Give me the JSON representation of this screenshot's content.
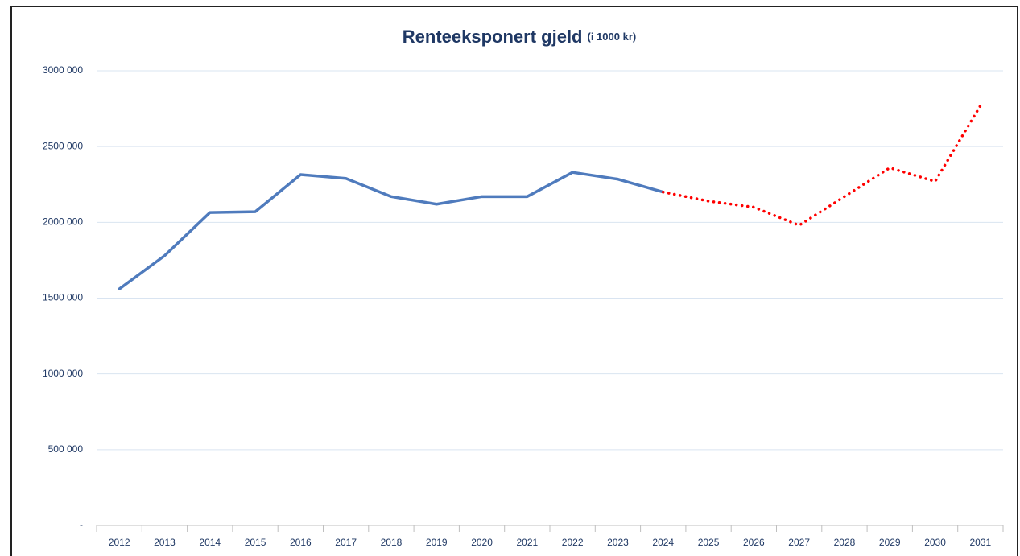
{
  "chart_data": {
    "type": "line",
    "title": "Renteeksponert gjeld",
    "subtitle": "(i 1000 kr)",
    "categories": [
      "2012",
      "2013",
      "2014",
      "2015",
      "2016",
      "2017",
      "2018",
      "2019",
      "2020",
      "2021",
      "2022",
      "2023",
      "2024",
      "2025",
      "2026",
      "2027",
      "2028",
      "2029",
      "2030",
      "2031"
    ],
    "series": [
      {
        "color": "#4f7bbd",
        "style": "solid",
        "values": [
          1560000,
          1780000,
          2065000,
          2070000,
          2315000,
          2290000,
          2170000,
          2120000,
          2170000,
          2170000,
          2330000,
          2285000,
          2200000,
          null,
          null,
          null,
          null,
          null,
          null,
          null
        ]
      },
      {
        "color": "#ff0000",
        "style": "dotted",
        "values": [
          null,
          null,
          null,
          null,
          null,
          null,
          null,
          null,
          null,
          null,
          null,
          null,
          2200000,
          2140000,
          2100000,
          1980000,
          2170000,
          2360000,
          2270000,
          2770000
        ]
      }
    ],
    "ylim": [
      0,
      3000000
    ],
    "yticks": [
      {
        "value": 0,
        "label": "-"
      },
      {
        "value": 500000,
        "label": "500 000"
      },
      {
        "value": 1000000,
        "label": "1000 000"
      },
      {
        "value": 1500000,
        "label": "1500 000"
      },
      {
        "value": 2000000,
        "label": "2000 000"
      },
      {
        "value": 2500000,
        "label": "2500 000"
      },
      {
        "value": 3000000,
        "label": "3000 000"
      }
    ],
    "grid": true
  }
}
